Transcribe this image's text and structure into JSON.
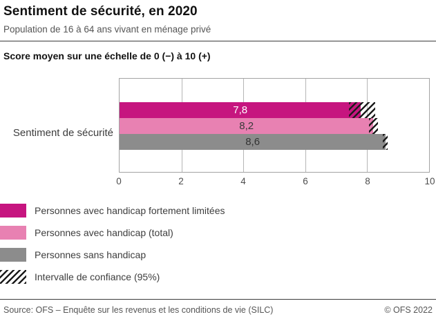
{
  "header": {
    "title": "Sentiment de sécurité, en 2020",
    "subtitle": "Population de 16 à 64 ans vivant en ménage privé",
    "axis_title": "Score moyen sur une échelle de 0 (−) à 10 (+)"
  },
  "chart_data": {
    "type": "bar",
    "orientation": "horizontal",
    "category": "Sentiment de sécurité",
    "xlim": [
      0,
      10
    ],
    "xticks": [
      0,
      2,
      4,
      6,
      8,
      10
    ],
    "grid": "vertical",
    "legend_position": "bottom-left",
    "series": [
      {
        "name": "Personnes avec handicap fortement limitées",
        "value": 7.8,
        "value_label": "7,8",
        "ci": [
          7.4,
          8.25
        ],
        "color": "#c6157f",
        "value_color": "#ffffff"
      },
      {
        "name": "Personnes avec handicap (total)",
        "value": 8.2,
        "value_label": "8,2",
        "ci": [
          8.05,
          8.35
        ],
        "color": "#e881b2",
        "value_color": "#3a3a3a"
      },
      {
        "name": "Personnes sans handicap",
        "value": 8.6,
        "value_label": "8,6",
        "ci": [
          8.5,
          8.65
        ],
        "color": "#8c8c8c",
        "value_color": "#333333"
      }
    ],
    "ci_legend_label": "Intervalle de confiance (95%)"
  },
  "footer": {
    "source": "Source: OFS – Enquête sur les revenus et les conditions de vie (SILC)",
    "copyright": "© OFS 2022"
  }
}
